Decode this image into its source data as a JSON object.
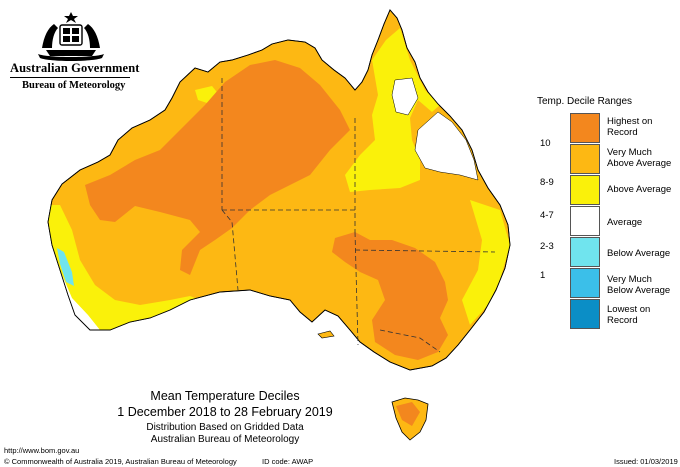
{
  "header": {
    "government": "Australian Government",
    "agency": "Bureau of Meteorology"
  },
  "legend": {
    "title": "Temp. Decile Ranges",
    "items": [
      {
        "code": "",
        "label": "Highest on Record",
        "color": "#f3871e"
      },
      {
        "code": "10",
        "label": "Very Much Above Average",
        "color": "#fdb813"
      },
      {
        "code": "8-9",
        "label": "Above Average",
        "color": "#faf10a"
      },
      {
        "code": "4-7",
        "label": "Average",
        "color": "#ffffff"
      },
      {
        "code": "2-3",
        "label": "Below Average",
        "color": "#70e4ee"
      },
      {
        "code": "1",
        "label": "Very Much Below Average",
        "color": "#3bbfe9"
      },
      {
        "code": "",
        "label": "Lowest on Record",
        "color": "#0b8ec6"
      }
    ]
  },
  "caption": {
    "title": "Mean Temperature Deciles",
    "dates": "1 December 2018 to 28 February 2019",
    "line1": "Distribution Based on Gridded Data",
    "line2": "Australian Bureau of Meteorology"
  },
  "footer": {
    "url": "http://www.bom.gov.au",
    "copyright": "© Commonwealth of Australia 2019, Australian Bureau of Meteorology",
    "id_code": "ID code: AWAP",
    "issued": "Issued: 01/03/2019"
  }
}
